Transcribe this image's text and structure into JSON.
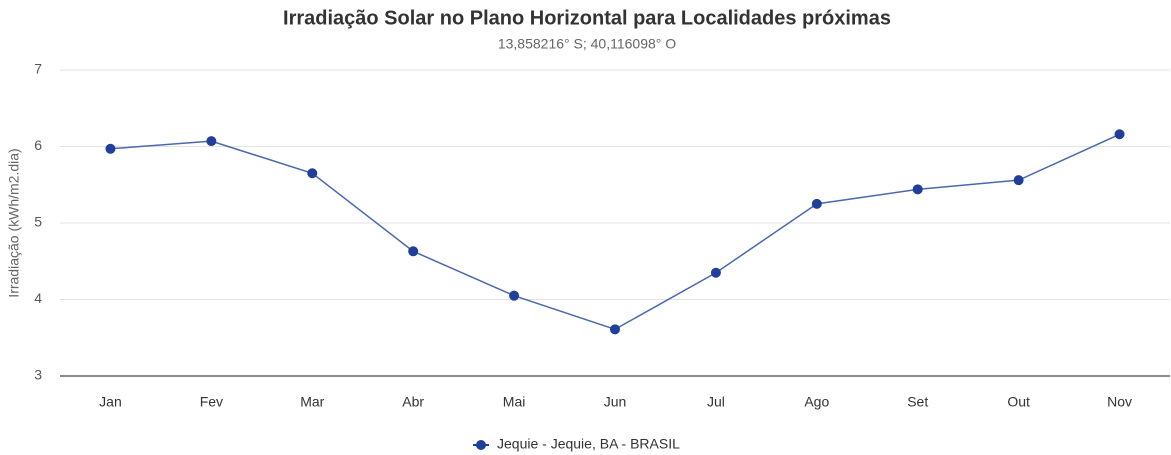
{
  "chart_data": {
    "type": "line",
    "title": "Irradiação Solar no Plano Horizontal para Localidades próximas",
    "subtitle": "13,858216° S; 40,116098° O",
    "y_label": "Irradiação (kWh/m2.dia)",
    "categories": [
      "Jan",
      "Fev",
      "Mar",
      "Abr",
      "Mai",
      "Jun",
      "Jul",
      "Ago",
      "Set",
      "Out",
      "Nov"
    ],
    "series": [
      {
        "name": "Jequie - Jequie, BA - BRASIL",
        "color": "#1f3f9a",
        "values": [
          5.97,
          6.07,
          5.65,
          4.63,
          4.05,
          3.61,
          4.35,
          5.25,
          5.44,
          5.56,
          6.16
        ]
      }
    ],
    "ylim": [
      3,
      7
    ],
    "yticks": [
      3,
      4,
      5,
      6,
      7
    ],
    "grid": true,
    "legend": "bottom"
  }
}
